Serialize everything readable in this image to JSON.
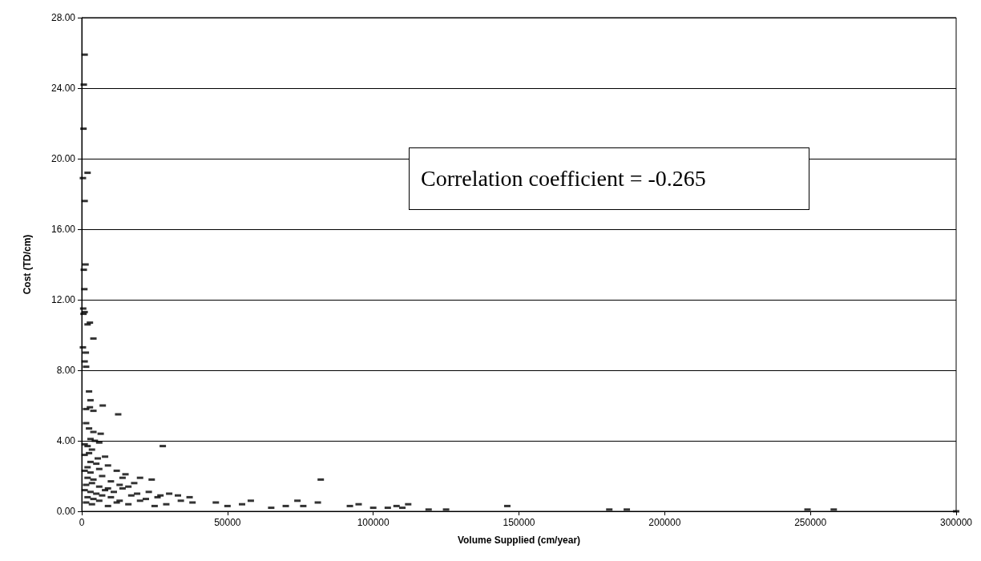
{
  "chart_data": {
    "type": "scatter",
    "xlabel": "Volume Supplied (cm/year)",
    "ylabel": "Cost (TD/cm)",
    "xlim": [
      0,
      300000
    ],
    "xticks": [
      0,
      50000,
      100000,
      150000,
      200000,
      250000,
      300000
    ],
    "ylim": [
      0,
      28
    ],
    "yticks": [
      {
        "value": 0,
        "label": "0.00"
      },
      {
        "value": 4,
        "label": "4.00"
      },
      {
        "value": 8,
        "label": "8.00"
      },
      {
        "value": 12,
        "label": "12.00"
      },
      {
        "value": 16,
        "label": "16.00"
      },
      {
        "value": 20,
        "label": "20.00"
      },
      {
        "value": 24,
        "label": "24.00"
      },
      {
        "value": 28,
        "label": "28.00"
      }
    ],
    "grid": "y",
    "marker": "square",
    "annotations": [
      "Correlation coefficient = -0.265"
    ],
    "series": [
      {
        "color": "#000000",
        "x": [
          1000,
          700,
          600,
          2000,
          400,
          1000,
          1300,
          700,
          900,
          500,
          1000,
          600,
          2800,
          2000,
          4000,
          400,
          1400,
          1000,
          1500,
          2500,
          3000,
          1500,
          2800,
          4000,
          7200,
          12500,
          1500,
          2500,
          4000,
          6500,
          3000,
          4500,
          1000,
          2000,
          3500,
          6000,
          1000,
          2500,
          5500,
          8000,
          3000,
          5000,
          2000,
          1000,
          3000,
          6000,
          9000,
          12000,
          15000,
          2000,
          4000,
          7000,
          10000,
          14000,
          18000,
          1500,
          3500,
          6000,
          9000,
          13000,
          16000,
          20000,
          24000,
          1000,
          3000,
          5000,
          8000,
          11000,
          14000,
          19000,
          23000,
          27000,
          2000,
          4000,
          7000,
          10000,
          13000,
          17000,
          22000,
          26000,
          30000,
          33000,
          37000,
          1500,
          3500,
          6000,
          9000,
          12000,
          16000,
          20000,
          25000,
          29000,
          34000,
          38000,
          27800,
          46000,
          50000,
          55000,
          58000,
          65000,
          70000,
          74000,
          76000,
          81000,
          82000,
          92000,
          95000,
          100000,
          105000,
          108000,
          110000,
          112000,
          119000,
          125000,
          146000,
          181000,
          187000,
          249000,
          258000,
          300000
        ],
        "values": [
          25.9,
          24.2,
          21.7,
          19.2,
          18.9,
          17.6,
          14.0,
          13.7,
          12.6,
          11.5,
          11.3,
          11.2,
          10.7,
          10.6,
          9.8,
          9.3,
          9.0,
          8.5,
          8.2,
          6.8,
          6.3,
          5.8,
          5.9,
          5.7,
          6.0,
          5.5,
          5.0,
          4.7,
          4.5,
          4.4,
          4.1,
          4.0,
          3.8,
          3.7,
          3.5,
          3.9,
          3.2,
          3.3,
          3.0,
          3.1,
          2.8,
          2.7,
          2.5,
          2.3,
          2.2,
          2.4,
          2.6,
          2.3,
          2.1,
          1.9,
          1.8,
          2.0,
          1.7,
          1.9,
          1.6,
          1.5,
          1.6,
          1.4,
          1.3,
          1.5,
          1.4,
          1.9,
          1.8,
          1.2,
          1.1,
          1.0,
          1.2,
          1.1,
          1.3,
          1.0,
          1.1,
          0.9,
          0.8,
          0.7,
          0.9,
          0.8,
          0.6,
          0.9,
          0.7,
          0.8,
          1.0,
          0.9,
          0.8,
          0.5,
          0.4,
          0.6,
          0.3,
          0.5,
          0.4,
          0.6,
          0.3,
          0.4,
          0.6,
          0.5,
          3.7,
          0.5,
          0.3,
          0.4,
          0.6,
          0.2,
          0.3,
          0.6,
          0.3,
          0.5,
          1.8,
          0.3,
          0.4,
          0.2,
          0.2,
          0.3,
          0.2,
          0.4,
          0.1,
          0.1,
          0.3,
          0.1,
          0.1,
          0.1,
          0.1,
          0.0
        ]
      }
    ]
  }
}
